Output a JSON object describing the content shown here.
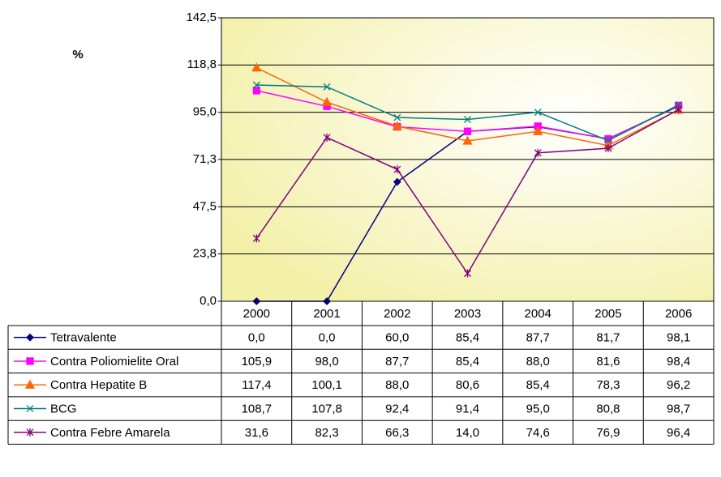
{
  "chart_data": {
    "type": "line",
    "y_label": "%",
    "categories": [
      "2000",
      "2001",
      "2002",
      "2003",
      "2004",
      "2005",
      "2006"
    ],
    "ylim": [
      0,
      142.5
    ],
    "yticks": [
      {
        "value": 0,
        "label": "0,0"
      },
      {
        "value": 23.8,
        "label": "23,8"
      },
      {
        "value": 47.5,
        "label": "47,5"
      },
      {
        "value": 71.3,
        "label": "71,3"
      },
      {
        "value": 95,
        "label": "95,0"
      },
      {
        "value": 118.8,
        "label": "118,8"
      },
      {
        "value": 142.5,
        "label": "142,5"
      }
    ],
    "grid": true,
    "series": [
      {
        "name": "Tetravalente",
        "color": "#000080",
        "marker": "diamond",
        "values": [
          0,
          0,
          60,
          85.4,
          87.7,
          81.7,
          98.1
        ],
        "value_labels": [
          "0,0",
          "0,0",
          "60,0",
          "85,4",
          "87,7",
          "81,7",
          "98,1"
        ]
      },
      {
        "name": "Contra Poliomielite Oral",
        "color": "#ff00ff",
        "marker": "square",
        "values": [
          105.9,
          98,
          87.7,
          85.4,
          88,
          81.6,
          98.4
        ],
        "value_labels": [
          "105,9",
          "98,0",
          "87,7",
          "85,4",
          "88,0",
          "81,6",
          "98,4"
        ]
      },
      {
        "name": "Contra Hepatite B",
        "color": "#ff6600",
        "marker": "triangle",
        "values": [
          117.4,
          100.1,
          88,
          80.6,
          85.4,
          78.3,
          96.2
        ],
        "value_labels": [
          "117,4",
          "100,1",
          "88,0",
          "80,6",
          "85,4",
          "78,3",
          "96,2"
        ]
      },
      {
        "name": "BCG",
        "color": "#008080",
        "marker": "x",
        "values": [
          108.7,
          107.8,
          92.4,
          91.4,
          95,
          80.8,
          98.7
        ],
        "value_labels": [
          "108,7",
          "107,8",
          "92,4",
          "91,4",
          "95,0",
          "80,8",
          "98,7"
        ]
      },
      {
        "name": "Contra Febre Amarela",
        "color": "#800080",
        "marker": "star",
        "values": [
          31.6,
          82.3,
          66.3,
          14,
          74.6,
          76.9,
          96.4
        ],
        "value_labels": [
          "31,6",
          "82,3",
          "66,3",
          "14,0",
          "74,6",
          "76,9",
          "96,4"
        ]
      }
    ]
  }
}
